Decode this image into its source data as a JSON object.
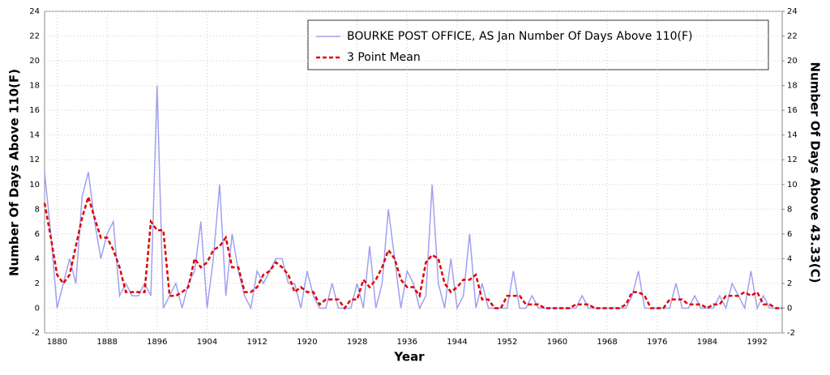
{
  "chart_data": {
    "type": "line",
    "x_label": "Year",
    "y_label": "Number Of Days Above 110(F)",
    "y2_label": "Number Of Days Above 43.33(C)",
    "x": [
      1878,
      1879,
      1880,
      1881,
      1882,
      1883,
      1884,
      1885,
      1886,
      1887,
      1888,
      1889,
      1890,
      1891,
      1892,
      1893,
      1894,
      1895,
      1896,
      1897,
      1898,
      1899,
      1900,
      1901,
      1902,
      1903,
      1904,
      1905,
      1906,
      1907,
      1908,
      1909,
      1910,
      1911,
      1912,
      1913,
      1914,
      1915,
      1916,
      1917,
      1918,
      1919,
      1920,
      1921,
      1922,
      1923,
      1924,
      1925,
      1926,
      1927,
      1928,
      1929,
      1930,
      1931,
      1932,
      1933,
      1934,
      1935,
      1936,
      1937,
      1938,
      1939,
      1940,
      1941,
      1942,
      1943,
      1944,
      1945,
      1946,
      1947,
      1948,
      1949,
      1950,
      1951,
      1952,
      1953,
      1954,
      1955,
      1956,
      1957,
      1958,
      1959,
      1960,
      1961,
      1962,
      1963,
      1964,
      1965,
      1966,
      1967,
      1968,
      1969,
      1970,
      1971,
      1972,
      1973,
      1974,
      1975,
      1976,
      1977,
      1978,
      1979,
      1980,
      1981,
      1982,
      1983,
      1984,
      1985,
      1986,
      1987,
      1988,
      1989,
      1990,
      1991,
      1992,
      1993,
      1994,
      1995,
      1996
    ],
    "series": [
      {
        "name": "BOURKE POST OFFICE, AS  Jan  Number Of Days Above 110(F)",
        "color": "#a0a0f0",
        "dash": false,
        "values": [
          11,
          6,
          0,
          2,
          4,
          2,
          9,
          11,
          7,
          4,
          6,
          7,
          1,
          2,
          1,
          1,
          2,
          1,
          18,
          0,
          1,
          2,
          0,
          2,
          3,
          7,
          0,
          4,
          10,
          1,
          6,
          3,
          1,
          0,
          3,
          2,
          3,
          4,
          4,
          2,
          2,
          0,
          3,
          1,
          0,
          0,
          2,
          0,
          0,
          0,
          2,
          0,
          5,
          0,
          2,
          8,
          4,
          0,
          3,
          2,
          0,
          1,
          10,
          2,
          0,
          4,
          0,
          1,
          6,
          0,
          2,
          0,
          0,
          0,
          0,
          3,
          0,
          0,
          1,
          0,
          0,
          0,
          0,
          0,
          0,
          0,
          1,
          0,
          0,
          0,
          0,
          0,
          0,
          0,
          1,
          3,
          0,
          0,
          0,
          0,
          0,
          2,
          0,
          0,
          1,
          0,
          0,
          0,
          1,
          0,
          2,
          1,
          0,
          3,
          0,
          1,
          0,
          0,
          0
        ]
      },
      {
        "name": "3 Point Mean",
        "color": "#e00000",
        "dash": true,
        "values": [
          8.5,
          5.7,
          2.7,
          2,
          2.7,
          5,
          7.3,
          9,
          7.3,
          5.7,
          5.7,
          4.7,
          3.3,
          1.3,
          1.3,
          1.3,
          1.3,
          7,
          6.3,
          6.3,
          1,
          1,
          1.3,
          1.7,
          4,
          3.3,
          3.7,
          4.7,
          5,
          5.7,
          3.3,
          3.3,
          1.3,
          1.3,
          1.7,
          2.7,
          3,
          3.7,
          3.3,
          2.7,
          1.3,
          1.7,
          1.3,
          1.3,
          0.3,
          0.7,
          0.7,
          0.7,
          0,
          0.7,
          0.7,
          2.3,
          1.7,
          2.3,
          3.3,
          4.7,
          4,
          2.3,
          1.7,
          1.7,
          1,
          3.7,
          4.3,
          4,
          2,
          1.3,
          1.7,
          2.3,
          2.3,
          2.7,
          0.7,
          0.7,
          0,
          0,
          1,
          1,
          1,
          0.3,
          0.3,
          0.3,
          0,
          0,
          0,
          0,
          0,
          0.3,
          0.3,
          0.3,
          0,
          0,
          0,
          0,
          0,
          0.3,
          1.3,
          1.3,
          1,
          0,
          0,
          0,
          0.7,
          0.7,
          0.7,
          0.3,
          0.3,
          0.3,
          0,
          0.3,
          0.3,
          1,
          1,
          1,
          1.3,
          1,
          1.3,
          0.3,
          0.3,
          0,
          0
        ]
      }
    ],
    "xlim": [
      1878,
      1996
    ],
    "xticks": [
      1880,
      1888,
      1896,
      1904,
      1912,
      1920,
      1928,
      1936,
      1944,
      1952,
      1960,
      1968,
      1976,
      1984,
      1992
    ],
    "ylim": [
      -2,
      24
    ],
    "yticks": [
      -2,
      0,
      2,
      4,
      6,
      8,
      10,
      12,
      14,
      16,
      18,
      20,
      22,
      24
    ],
    "y2lim": [
      -2,
      24
    ],
    "y2ticks": [
      -2,
      0,
      2,
      4,
      6,
      8,
      10,
      12,
      14,
      16,
      18,
      20,
      22,
      24
    ],
    "grid": true,
    "legend": "top-right"
  }
}
